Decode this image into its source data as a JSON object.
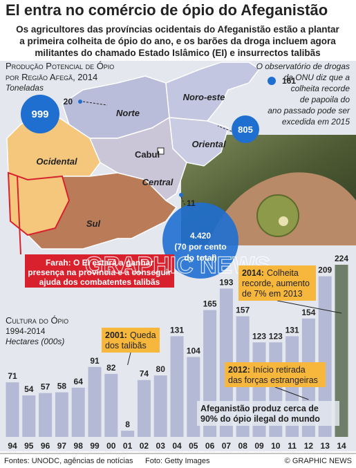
{
  "title": "El entra no comércio de ópio do Afeganistão",
  "subtitle": [
    "Os agricultores das províncias ocidentais do Afeganistão estão a plantar",
    "a primeira colheita de ópio do ano, e os barões da droga incluem agora",
    "militantes do chamado Estado Islâmico (EI) e insurrectos talibãs"
  ],
  "map": {
    "title": [
      "Produção Potencial de Ópio",
      "por Região Afegã, 2014"
    ],
    "unit": "Toneladas",
    "regions": [
      {
        "name": "Ocidental",
        "value": "999"
      },
      {
        "name": "Norte",
        "value": "20"
      },
      {
        "name": "Noro-este",
        "value": "161"
      },
      {
        "name": "Oriental",
        "value": "805"
      },
      {
        "name": "Central",
        "value": "11"
      },
      {
        "name": "Sul",
        "value": "4.420",
        "note": [
          "(70 por cento",
          "do total)"
        ]
      }
    ],
    "capital": "Cabul",
    "note": [
      "O observatório de drogas",
      "da ONU diz que a",
      "colheita recorde",
      "de papoila do",
      "ano passado pode ser",
      "excedida em 2015"
    ],
    "farah": [
      "Farah: O EI estará a ganhar",
      "presença na província e a conseguir",
      "ajuda dos combatentes talibãs"
    ]
  },
  "chart_data": {
    "type": "bar",
    "title": "Cultura do Ópio",
    "period": "1994-2014",
    "unit": "Hectares (000s)",
    "categories": [
      "94",
      "95",
      "96",
      "97",
      "98",
      "99",
      "00",
      "01",
      "02",
      "03",
      "04",
      "05",
      "06",
      "07",
      "08",
      "09",
      "10",
      "11",
      "12",
      "13",
      "14"
    ],
    "values": [
      71,
      54,
      57,
      58,
      64,
      91,
      82,
      8,
      74,
      80,
      131,
      104,
      165,
      193,
      157,
      123,
      123,
      131,
      154,
      209,
      224
    ],
    "colors": [
      "#b4bad6",
      "#b4bad6",
      "#b4bad6",
      "#b4bad6",
      "#b4bad6",
      "#b4bad6",
      "#b4bad6",
      "#b4bad6",
      "#b4bad6",
      "#b4bad6",
      "#b4bad6",
      "#b4bad6",
      "#b4bad6",
      "#b4bad6",
      "#b4bad6",
      "#b4bad6",
      "#b4bad6",
      "#b4bad6",
      "#b4bad6",
      "#b4bad6",
      "#6f7e68"
    ],
    "annotations": [
      {
        "lead": "2001:",
        "lines": [
          "Queda",
          "dos talibãs"
        ]
      },
      {
        "lead": "2014:",
        "lines": [
          "Colheita",
          "recorde, aumento",
          "de 7% em 2013"
        ]
      },
      {
        "lead": "2012:",
        "lines": [
          "Início retirada",
          "das forças estrangeiras"
        ]
      },
      {
        "lines": [
          "Afeganistão produz cerca de",
          "90% do ópio ilegal do mundo"
        ]
      }
    ]
  },
  "watermark": "GRAPHIC NEWS",
  "footer": {
    "sources": "Fontes: UNODC, agências de notícias",
    "photo": "Foto: Getty Images",
    "copyright": "© GRAPHIC NEWS"
  }
}
